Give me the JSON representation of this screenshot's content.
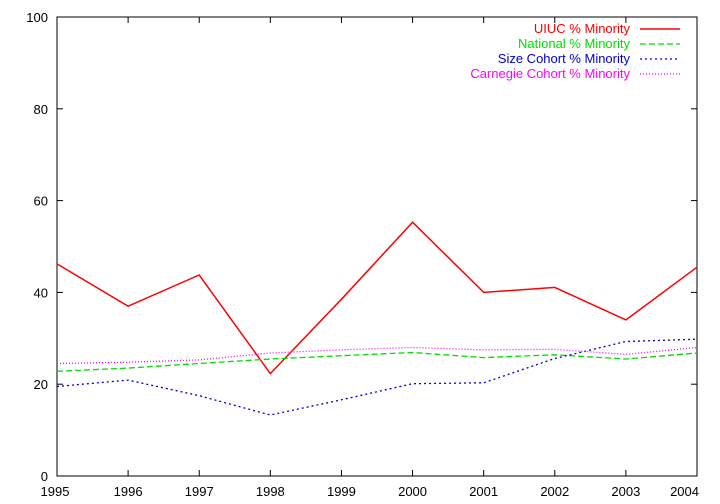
{
  "chart_data": {
    "type": "line",
    "title": "",
    "xlabel": "",
    "ylabel": "",
    "x": [
      "1995",
      "1996",
      "1997",
      "1998",
      "1999",
      "2000",
      "2001",
      "2002",
      "2003",
      "2004"
    ],
    "xlim": [
      1995,
      2004
    ],
    "ylim": [
      0,
      100
    ],
    "yticks": [
      "0",
      "20",
      "40",
      "60",
      "80",
      "100"
    ],
    "grid": false,
    "legend_position": "top-right",
    "series": [
      {
        "name": "UIUC % Minority",
        "color": "#ff0000",
        "dash": "solid",
        "values": [
          46.2,
          37.0,
          43.8,
          22.3,
          38.5,
          55.3,
          40.0,
          41.1,
          34.0,
          45.5
        ]
      },
      {
        "name": "National % Minority",
        "color": "#00dd00",
        "dash": "dashed",
        "values": [
          22.8,
          23.5,
          24.5,
          25.5,
          26.2,
          26.9,
          25.8,
          26.4,
          25.5,
          26.8
        ]
      },
      {
        "name": "Size Cohort % Minority",
        "color": "#0000cc",
        "dash": "dotted",
        "values": [
          19.5,
          20.9,
          17.5,
          13.3,
          16.6,
          20.1,
          20.3,
          25.6,
          29.3,
          29.8
        ]
      },
      {
        "name": "Carnegie Cohort % Minority",
        "color": "#ff00ff",
        "dash": "fine-dotted",
        "values": [
          24.5,
          24.8,
          25.3,
          26.8,
          27.5,
          28.0,
          27.5,
          27.6,
          26.5,
          28.0
        ]
      }
    ]
  }
}
